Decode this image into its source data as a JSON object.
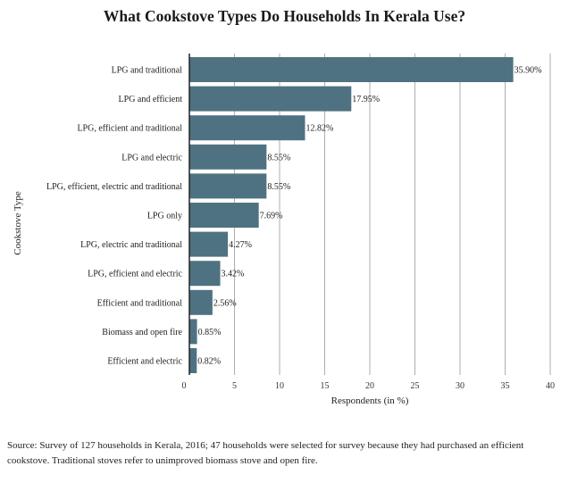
{
  "chart_data": {
    "type": "bar",
    "orientation": "horizontal",
    "title": "What Cookstove Types Do Households In Kerala Use?",
    "xlabel": "Respondents (in %)",
    "ylabel": "Cookstove Type",
    "xlim": [
      0,
      40
    ],
    "xticks": [
      0,
      5,
      10,
      15,
      20,
      25,
      30,
      35,
      40
    ],
    "grid": "vertical",
    "bar_color": "#4f7282",
    "categories": [
      "LPG and traditional",
      "LPG and efficient",
      "LPG, efficient and traditional",
      "LPG and electric",
      "LPG, efficient, electric and traditional",
      "LPG only",
      "LPG, electric and traditional",
      "LPG, efficient and electric",
      "Efficient and traditional",
      "Biomass and open fire",
      "Efficient and electric"
    ],
    "values": [
      35.9,
      17.95,
      12.82,
      8.55,
      8.55,
      7.69,
      4.27,
      3.42,
      2.56,
      0.85,
      0.82
    ],
    "value_labels": [
      "35.90%",
      "17.95%",
      "12.82%",
      "8.55%",
      "8.55%",
      "7.69%",
      "4.27%",
      "3.42%",
      "2.56%",
      "0.85%",
      "0.82%"
    ]
  },
  "source": "Source: Survey of 127 households in Kerala, 2016; 47 households were selected for survey because they had purchased an efficient cookstove. Traditional stoves refer to unimproved biomass stove and open fire."
}
